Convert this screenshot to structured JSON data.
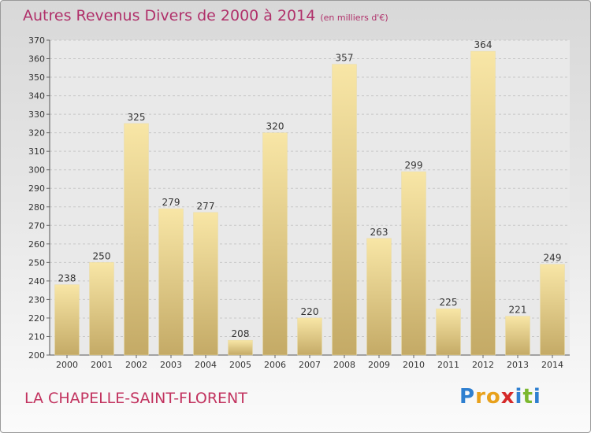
{
  "title": "Autres Revenus Divers de 2000 à 2014",
  "subtitle": "(en milliers d'€)",
  "commune": "LA CHAPELLE-SAINT-FLORENT",
  "logo": {
    "text": "Proxiti",
    "colors": [
      "#2e7fd0",
      "#e8a11c",
      "#e8a11c",
      "#d52a2a",
      "#2e7fd0",
      "#7cb82f",
      "#2e7fd0"
    ]
  },
  "colors": {
    "title": "#b0306a",
    "bar_light": "#f8e6a6",
    "bar_dark": "#c4aa66",
    "label": "#333333",
    "grid": "#c8c8c8"
  },
  "chart_data": {
    "type": "bar",
    "categories": [
      "2000",
      "2001",
      "2002",
      "2003",
      "2004",
      "2005",
      "2006",
      "2007",
      "2008",
      "2009",
      "2010",
      "2011",
      "2012",
      "2013",
      "2014"
    ],
    "values": [
      238,
      250,
      325,
      279,
      277,
      208,
      320,
      220,
      357,
      263,
      299,
      225,
      364,
      221,
      249
    ],
    "ylim": [
      200,
      370
    ],
    "yticks": [
      200,
      210,
      220,
      230,
      240,
      250,
      260,
      270,
      280,
      290,
      300,
      310,
      320,
      330,
      340,
      350,
      360,
      370
    ],
    "grid": true,
    "data_labels": true
  }
}
